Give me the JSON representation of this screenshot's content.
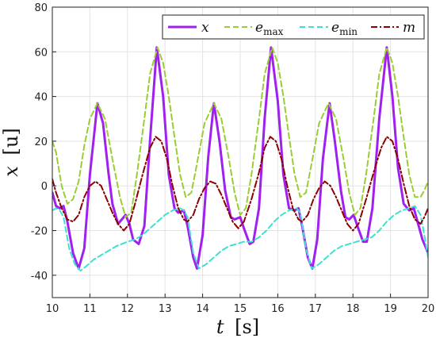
{
  "chart_data": {
    "type": "line",
    "xlabel_var": "t",
    "xlabel_unit": "[s]",
    "ylabel_var": "x",
    "ylabel_unit": "[u]",
    "xlim": [
      10,
      20
    ],
    "ylim": [
      -50,
      80
    ],
    "xticks": [
      10,
      11,
      12,
      13,
      14,
      15,
      16,
      17,
      18,
      19,
      20
    ],
    "yticks": [
      -40,
      -20,
      0,
      20,
      40,
      60,
      80
    ],
    "grid": true,
    "legend_position": "top-right",
    "legend_orientation": "horizontal",
    "series": [
      {
        "name": "x",
        "color": "#a020f0",
        "style": "solid",
        "points": [
          [
            10.0,
            -3
          ],
          [
            10.1,
            -9
          ],
          [
            10.2,
            -10
          ],
          [
            10.3,
            -9
          ],
          [
            10.4,
            -16
          ],
          [
            10.55,
            -30
          ],
          [
            10.7,
            -37
          ],
          [
            10.85,
            -28
          ],
          [
            11.0,
            5
          ],
          [
            11.2,
            37
          ],
          [
            11.35,
            28
          ],
          [
            11.5,
            5
          ],
          [
            11.6,
            -8
          ],
          [
            11.75,
            -17
          ],
          [
            11.85,
            -15
          ],
          [
            11.95,
            -13
          ],
          [
            12.05,
            -17
          ],
          [
            12.15,
            -24
          ],
          [
            12.3,
            -26
          ],
          [
            12.45,
            -18
          ],
          [
            12.6,
            20
          ],
          [
            12.78,
            62
          ],
          [
            12.95,
            40
          ],
          [
            13.1,
            5
          ],
          [
            13.25,
            -10
          ],
          [
            13.35,
            -12
          ],
          [
            13.5,
            -11
          ],
          [
            13.6,
            -18
          ],
          [
            13.75,
            -32
          ],
          [
            13.85,
            -37
          ],
          [
            14.0,
            -22
          ],
          [
            14.15,
            13
          ],
          [
            14.3,
            37
          ],
          [
            14.45,
            20
          ],
          [
            14.6,
            -2
          ],
          [
            14.75,
            -14
          ],
          [
            14.85,
            -15
          ],
          [
            15.0,
            -14
          ],
          [
            15.1,
            -19
          ],
          [
            15.25,
            -26
          ],
          [
            15.35,
            -25
          ],
          [
            15.5,
            -10
          ],
          [
            15.65,
            30
          ],
          [
            15.82,
            62
          ],
          [
            16.0,
            38
          ],
          [
            16.15,
            5
          ],
          [
            16.3,
            -10
          ],
          [
            16.45,
            -11
          ],
          [
            16.55,
            -10
          ],
          [
            16.65,
            -18
          ],
          [
            16.8,
            -32
          ],
          [
            16.92,
            -37
          ],
          [
            17.05,
            -24
          ],
          [
            17.2,
            12
          ],
          [
            17.38,
            37
          ],
          [
            17.52,
            20
          ],
          [
            17.68,
            -2
          ],
          [
            17.8,
            -14
          ],
          [
            17.9,
            -15
          ],
          [
            18.02,
            -13
          ],
          [
            18.12,
            -18
          ],
          [
            18.27,
            -25
          ],
          [
            18.37,
            -25
          ],
          [
            18.52,
            -10
          ],
          [
            18.7,
            30
          ],
          [
            18.9,
            62
          ],
          [
            19.05,
            40
          ],
          [
            19.2,
            8
          ],
          [
            19.35,
            -8
          ],
          [
            19.5,
            -11
          ],
          [
            19.62,
            -10
          ],
          [
            19.72,
            -16
          ],
          [
            19.85,
            -24
          ],
          [
            20.0,
            -30
          ]
        ]
      },
      {
        "name": "e_max",
        "color": "#9acd32",
        "style": "dashed",
        "points": [
          [
            10.0,
            20
          ],
          [
            10.1,
            15
          ],
          [
            10.25,
            0
          ],
          [
            10.4,
            -8
          ],
          [
            10.55,
            -6
          ],
          [
            10.7,
            2
          ],
          [
            10.85,
            18
          ],
          [
            11.0,
            30
          ],
          [
            11.2,
            37
          ],
          [
            11.4,
            30
          ],
          [
            11.6,
            12
          ],
          [
            11.8,
            -5
          ],
          [
            11.95,
            -14
          ],
          [
            12.1,
            -12
          ],
          [
            12.25,
            5
          ],
          [
            12.45,
            30
          ],
          [
            12.6,
            50
          ],
          [
            12.8,
            62
          ],
          [
            12.95,
            55
          ],
          [
            13.1,
            40
          ],
          [
            13.25,
            22
          ],
          [
            13.4,
            5
          ],
          [
            13.55,
            -5
          ],
          [
            13.7,
            -3
          ],
          [
            13.85,
            10
          ],
          [
            14.05,
            28
          ],
          [
            14.3,
            37
          ],
          [
            14.5,
            30
          ],
          [
            14.7,
            12
          ],
          [
            14.85,
            -3
          ],
          [
            15.0,
            -13
          ],
          [
            15.15,
            -10
          ],
          [
            15.3,
            5
          ],
          [
            15.5,
            30
          ],
          [
            15.65,
            50
          ],
          [
            15.85,
            62
          ],
          [
            16.0,
            55
          ],
          [
            16.15,
            40
          ],
          [
            16.3,
            22
          ],
          [
            16.45,
            5
          ],
          [
            16.6,
            -5
          ],
          [
            16.75,
            -3
          ],
          [
            16.9,
            10
          ],
          [
            17.1,
            28
          ],
          [
            17.35,
            37
          ],
          [
            17.55,
            30
          ],
          [
            17.75,
            12
          ],
          [
            17.9,
            -3
          ],
          [
            18.05,
            -13
          ],
          [
            18.2,
            -10
          ],
          [
            18.35,
            5
          ],
          [
            18.55,
            30
          ],
          [
            18.7,
            50
          ],
          [
            18.9,
            62
          ],
          [
            19.05,
            55
          ],
          [
            19.2,
            40
          ],
          [
            19.35,
            22
          ],
          [
            19.5,
            5
          ],
          [
            19.65,
            -5
          ],
          [
            19.8,
            -5
          ],
          [
            19.9,
            -2
          ],
          [
            20.0,
            2
          ]
        ]
      },
      {
        "name": "e_min",
        "color": "#40e0d0",
        "style": "dashed",
        "points": [
          [
            10.0,
            -11
          ],
          [
            10.1,
            -10
          ],
          [
            10.2,
            -11
          ],
          [
            10.3,
            -14
          ],
          [
            10.45,
            -28
          ],
          [
            10.6,
            -35
          ],
          [
            10.75,
            -38
          ],
          [
            10.9,
            -36
          ],
          [
            11.1,
            -33
          ],
          [
            11.3,
            -31
          ],
          [
            11.5,
            -29
          ],
          [
            11.7,
            -27
          ],
          [
            11.85,
            -26
          ],
          [
            12.0,
            -25
          ],
          [
            12.2,
            -24
          ],
          [
            12.4,
            -22
          ],
          [
            12.6,
            -19
          ],
          [
            12.8,
            -16
          ],
          [
            13.0,
            -13
          ],
          [
            13.2,
            -11
          ],
          [
            13.4,
            -10
          ],
          [
            13.5,
            -11
          ],
          [
            13.6,
            -14
          ],
          [
            13.75,
            -30
          ],
          [
            13.9,
            -37
          ],
          [
            14.1,
            -35
          ],
          [
            14.3,
            -32
          ],
          [
            14.5,
            -29
          ],
          [
            14.7,
            -27
          ],
          [
            14.9,
            -26
          ],
          [
            15.1,
            -25
          ],
          [
            15.3,
            -25
          ],
          [
            15.5,
            -23
          ],
          [
            15.7,
            -20
          ],
          [
            15.9,
            -16
          ],
          [
            16.1,
            -13
          ],
          [
            16.3,
            -11
          ],
          [
            16.5,
            -10
          ],
          [
            16.6,
            -12
          ],
          [
            16.75,
            -28
          ],
          [
            16.9,
            -37
          ],
          [
            17.1,
            -35
          ],
          [
            17.3,
            -32
          ],
          [
            17.5,
            -29
          ],
          [
            17.7,
            -27
          ],
          [
            17.9,
            -26
          ],
          [
            18.1,
            -25
          ],
          [
            18.3,
            -24
          ],
          [
            18.5,
            -23
          ],
          [
            18.7,
            -20
          ],
          [
            18.9,
            -16
          ],
          [
            19.1,
            -13
          ],
          [
            19.3,
            -11
          ],
          [
            19.5,
            -10
          ],
          [
            19.65,
            -9
          ],
          [
            19.8,
            -13
          ],
          [
            19.9,
            -22
          ],
          [
            20.0,
            -32
          ]
        ]
      },
      {
        "name": "m",
        "color": "#8b0000",
        "style": "dashdot",
        "points": [
          [
            10.0,
            3
          ],
          [
            10.1,
            -3
          ],
          [
            10.25,
            -10
          ],
          [
            10.4,
            -15
          ],
          [
            10.55,
            -16
          ],
          [
            10.7,
            -13
          ],
          [
            10.85,
            -5
          ],
          [
            11.0,
            0
          ],
          [
            11.15,
            2
          ],
          [
            11.3,
            0
          ],
          [
            11.45,
            -6
          ],
          [
            11.6,
            -12
          ],
          [
            11.75,
            -17
          ],
          [
            11.9,
            -20
          ],
          [
            12.05,
            -17
          ],
          [
            12.2,
            -8
          ],
          [
            12.4,
            5
          ],
          [
            12.6,
            17
          ],
          [
            12.75,
            22
          ],
          [
            12.9,
            20
          ],
          [
            13.05,
            12
          ],
          [
            13.2,
            0
          ],
          [
            13.35,
            -10
          ],
          [
            13.5,
            -15
          ],
          [
            13.6,
            -16
          ],
          [
            13.75,
            -13
          ],
          [
            13.9,
            -6
          ],
          [
            14.05,
            -1
          ],
          [
            14.2,
            2
          ],
          [
            14.35,
            1
          ],
          [
            14.5,
            -4
          ],
          [
            14.65,
            -10
          ],
          [
            14.8,
            -16
          ],
          [
            14.95,
            -19
          ],
          [
            15.1,
            -16
          ],
          [
            15.3,
            -6
          ],
          [
            15.5,
            6
          ],
          [
            15.65,
            17
          ],
          [
            15.8,
            22
          ],
          [
            15.95,
            20
          ],
          [
            16.1,
            12
          ],
          [
            16.25,
            0
          ],
          [
            16.4,
            -10
          ],
          [
            16.55,
            -15
          ],
          [
            16.65,
            -16
          ],
          [
            16.8,
            -13
          ],
          [
            16.95,
            -6
          ],
          [
            17.1,
            -1
          ],
          [
            17.25,
            2
          ],
          [
            17.4,
            0
          ],
          [
            17.55,
            -5
          ],
          [
            17.7,
            -11
          ],
          [
            17.85,
            -17
          ],
          [
            18.0,
            -20
          ],
          [
            18.15,
            -17
          ],
          [
            18.35,
            -6
          ],
          [
            18.55,
            6
          ],
          [
            18.75,
            17
          ],
          [
            18.9,
            22
          ],
          [
            19.05,
            20
          ],
          [
            19.2,
            12
          ],
          [
            19.35,
            1
          ],
          [
            19.5,
            -9
          ],
          [
            19.65,
            -15
          ],
          [
            19.8,
            -17
          ],
          [
            19.9,
            -14
          ],
          [
            20.0,
            -10
          ]
        ]
      }
    ]
  }
}
